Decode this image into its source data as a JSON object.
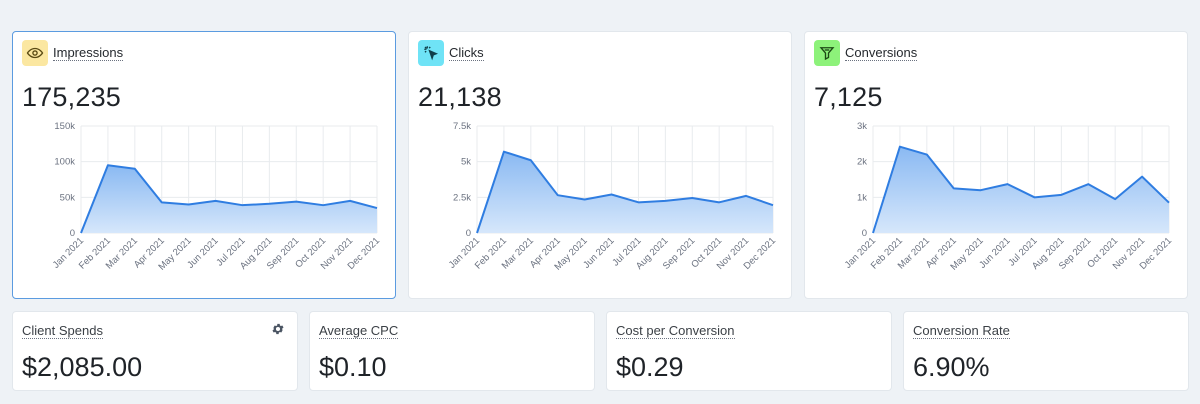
{
  "colors": {
    "line": "#2f7de1",
    "fill_top": "#8ab9f2",
    "fill_bottom": "#d6e7fb",
    "grid": "#e8ebee",
    "impressions_icon_bg": "#fbe7a1",
    "clicks_icon_bg": "#6fe3f6",
    "conversions_icon_bg": "#8df27a"
  },
  "months": [
    "Jan 2021",
    "Feb 2021",
    "Mar 2021",
    "Apr 2021",
    "May 2021",
    "Jun 2021",
    "Jul 2021",
    "Aug 2021",
    "Sep 2021",
    "Oct 2021",
    "Nov 2021",
    "Dec 2021"
  ],
  "cards": [
    {
      "title": "Impressions",
      "value": "175,235",
      "icon": "eye-icon",
      "chart_data": {
        "type": "area",
        "x": [
          "Jan 2021",
          "Feb 2021",
          "Mar 2021",
          "Apr 2021",
          "May 2021",
          "Jun 2021",
          "Jul 2021",
          "Aug 2021",
          "Sep 2021",
          "Oct 2021",
          "Nov 2021",
          "Dec 2021"
        ],
        "values": [
          0,
          95000,
          90000,
          43000,
          40000,
          45000,
          39000,
          41000,
          44000,
          39000,
          45000,
          35000
        ],
        "ylim": [
          0,
          150000
        ],
        "yticks": [
          "0",
          "50k",
          "100k",
          "150k"
        ],
        "ytick_values": [
          0,
          50000,
          100000,
          150000
        ],
        "grid": true
      }
    },
    {
      "title": "Clicks",
      "value": "21,138",
      "icon": "cursor-click-icon",
      "chart_data": {
        "type": "area",
        "x": [
          "Jan 2021",
          "Feb 2021",
          "Mar 2021",
          "Apr 2021",
          "May 2021",
          "Jun 2021",
          "Jul 2021",
          "Aug 2021",
          "Sep 2021",
          "Oct 2021",
          "Nov 2021",
          "Dec 2021"
        ],
        "values": [
          0,
          5700,
          5100,
          2650,
          2350,
          2700,
          2150,
          2250,
          2450,
          2150,
          2600,
          1950
        ],
        "ylim": [
          0,
          7500
        ],
        "yticks": [
          "0",
          "2.5k",
          "5k",
          "7.5k"
        ],
        "ytick_values": [
          0,
          2500,
          5000,
          7500
        ],
        "grid": true
      }
    },
    {
      "title": "Conversions",
      "value": "7,125",
      "icon": "funnel-icon",
      "chart_data": {
        "type": "area",
        "x": [
          "Jan 2021",
          "Feb 2021",
          "Mar 2021",
          "Apr 2021",
          "May 2021",
          "Jun 2021",
          "Jul 2021",
          "Aug 2021",
          "Sep 2021",
          "Oct 2021",
          "Nov 2021",
          "Dec 2021"
        ],
        "values": [
          0,
          2420,
          2200,
          1250,
          1200,
          1370,
          1000,
          1070,
          1370,
          950,
          1580,
          850
        ],
        "ylim": [
          0,
          3000
        ],
        "yticks": [
          "0",
          "1k",
          "2k",
          "3k"
        ],
        "ytick_values": [
          0,
          1000,
          2000,
          3000
        ],
        "grid": true
      }
    }
  ],
  "stats": [
    {
      "title": "Client Spends",
      "value": "$2,085.00",
      "settings_icon": "gear-icon"
    },
    {
      "title": "Average CPC",
      "value": "$0.10"
    },
    {
      "title": "Cost per Conversion",
      "value": "$0.29"
    },
    {
      "title": "Conversion Rate",
      "value": "6.90%"
    }
  ]
}
